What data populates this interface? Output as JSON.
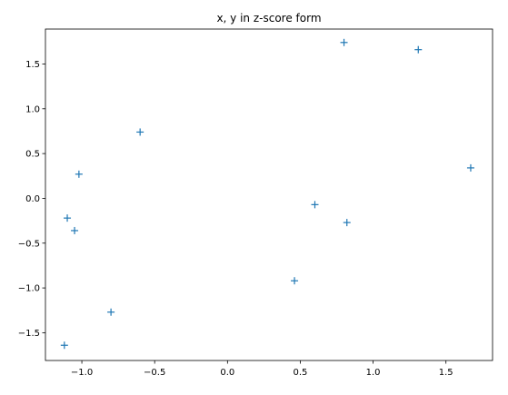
{
  "chart_data": {
    "type": "scatter",
    "title": "x, y in z-score form",
    "xlabel": "",
    "ylabel": "",
    "marker": "+",
    "marker_color": "#1f77b4",
    "grid": false,
    "legend": "none",
    "xlim": [
      -1.25,
      1.82
    ],
    "ylim": [
      -1.81,
      1.89
    ],
    "x_ticks": [
      -1.0,
      -0.5,
      0.0,
      0.5,
      1.0,
      1.5
    ],
    "x_tick_labels": [
      "−1.0",
      "−0.5",
      "0.0",
      "0.5",
      "1.0",
      "1.5"
    ],
    "y_ticks": [
      -1.5,
      -1.0,
      -0.5,
      0.0,
      0.5,
      1.0,
      1.5
    ],
    "y_tick_labels": [
      "−1.5",
      "−1.0",
      "−0.5",
      "0.0",
      "0.5",
      "1.0",
      "1.5"
    ],
    "points": [
      {
        "x": -1.12,
        "y": -1.64
      },
      {
        "x": -1.1,
        "y": -0.22
      },
      {
        "x": -1.05,
        "y": -0.36
      },
      {
        "x": -1.02,
        "y": 0.27
      },
      {
        "x": -0.8,
        "y": -1.27
      },
      {
        "x": -0.6,
        "y": 0.74
      },
      {
        "x": 0.46,
        "y": -0.92
      },
      {
        "x": 0.6,
        "y": -0.07
      },
      {
        "x": 0.8,
        "y": 1.74
      },
      {
        "x": 0.82,
        "y": -0.27
      },
      {
        "x": 1.31,
        "y": 1.66
      },
      {
        "x": 1.67,
        "y": 0.34
      }
    ]
  }
}
